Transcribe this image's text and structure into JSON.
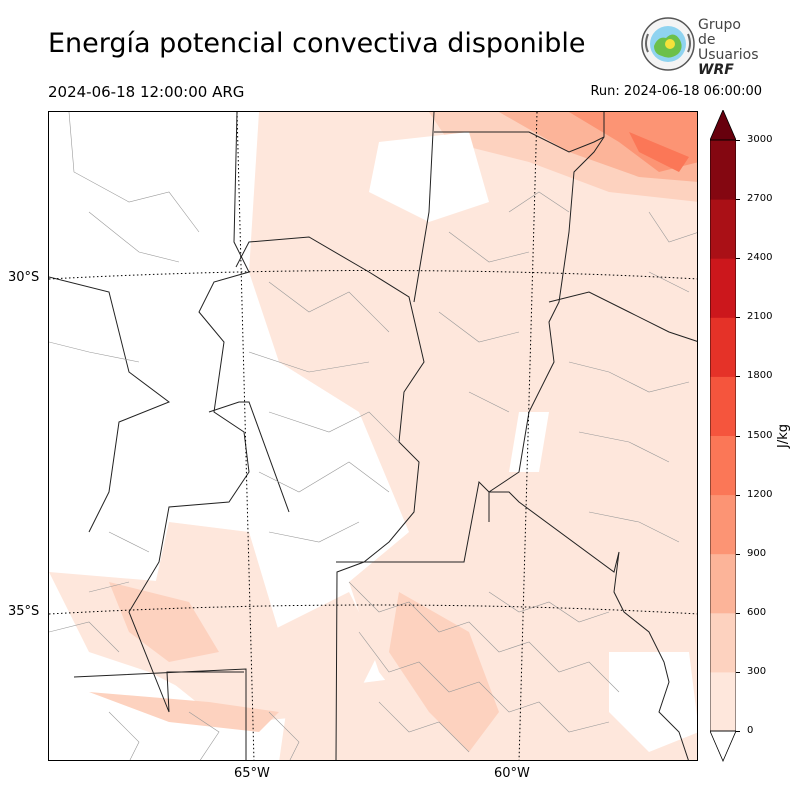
{
  "header": {
    "title": "Energía potencial convectiva disponible",
    "valid_time": "2024-06-18 12:00:00 ARG",
    "run": "Run: 2024-06-18 06:00:00"
  },
  "logo": {
    "line1": "Grupo de",
    "line2": "Usuarios",
    "line3": "WRF"
  },
  "map": {
    "lat_labels": [
      "30°S",
      "35°S"
    ],
    "lon_labels": [
      "65°W",
      "60°W"
    ]
  },
  "colorbar": {
    "unit": "J/kg",
    "ticks": [
      "0",
      "300",
      "600",
      "900",
      "1200",
      "1500",
      "1800",
      "2100",
      "2400",
      "2700",
      "3000"
    ],
    "colors": [
      "#fee7dc",
      "#fdd2bf",
      "#fcb499",
      "#fc9474",
      "#fb7757",
      "#f5553d",
      "#e53228",
      "#cc171c",
      "#aa1016",
      "#840711"
    ],
    "over_color": "#67000d",
    "under_color": "#ffffff"
  }
}
